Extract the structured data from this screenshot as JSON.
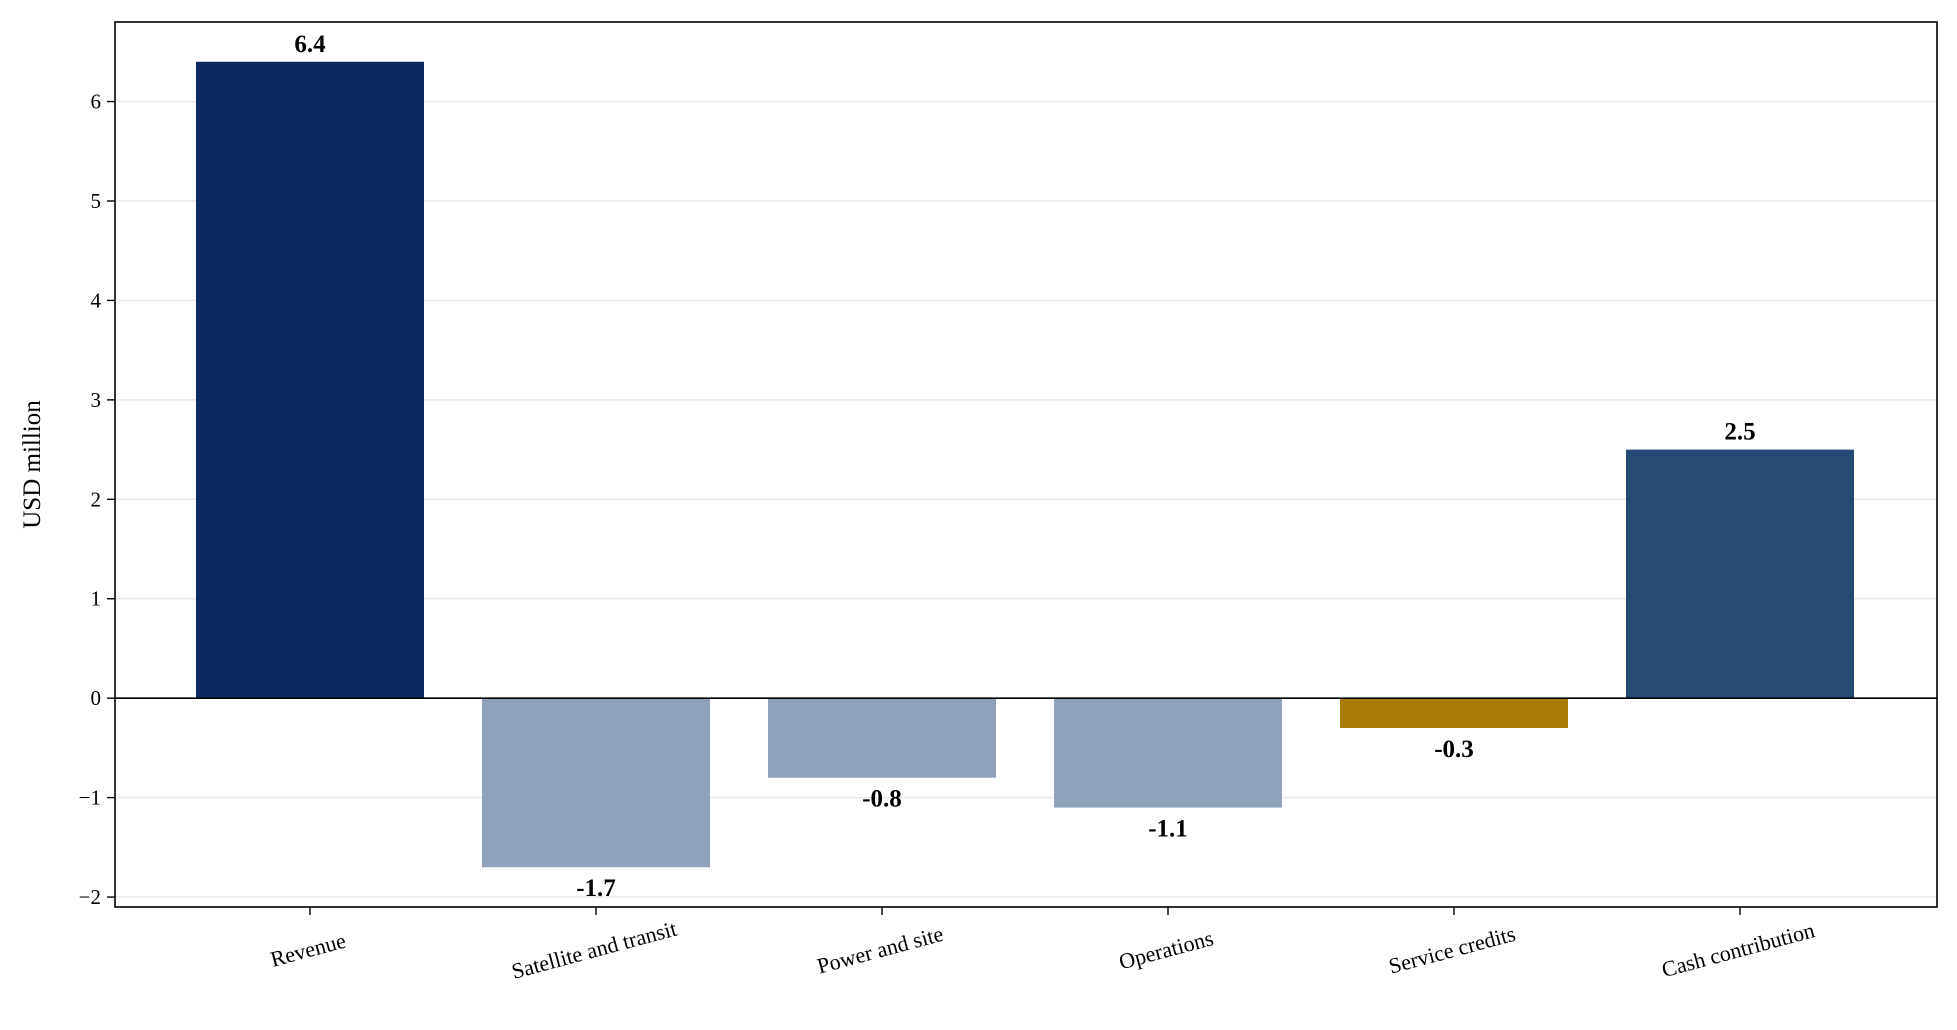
{
  "chart_data": {
    "type": "bar",
    "categories": [
      "Revenue",
      "Satellite and transit",
      "Power and site",
      "Operations",
      "Service credits",
      "Cash contribution"
    ],
    "values": [
      6.4,
      -1.7,
      -0.8,
      -1.1,
      -0.3,
      2.5
    ],
    "value_labels": [
      "6.4",
      "-1.7",
      "-0.8",
      "-1.1",
      "-0.3",
      "2.5"
    ],
    "bar_colors": [
      "#0b2a5e",
      "#8fa2ba",
      "#8fa2ba",
      "#8fa2ba",
      "#a87b04",
      "#264a76"
    ],
    "title": "",
    "xlabel": "",
    "ylabel": "USD million",
    "ylim": [
      -2.1,
      6.8
    ],
    "yticks": [
      -2,
      -1,
      0,
      1,
      2,
      3,
      4,
      5,
      6
    ],
    "ytick_labels": [
      "−2",
      "−1",
      "0",
      "1",
      "2",
      "3",
      "4",
      "5",
      "6"
    ],
    "grid": "horizontal",
    "zero_line": true,
    "x_tick_rotation_deg": -15
  }
}
